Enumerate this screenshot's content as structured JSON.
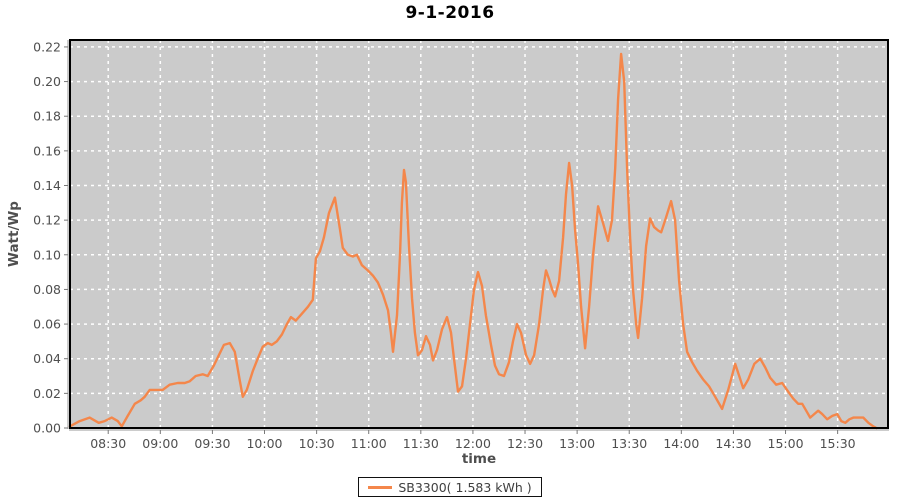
{
  "title": "9-1-2016",
  "colors": {
    "series": "#F4874B",
    "plot_background": "#CBCBCB",
    "grid": "#FFFFFF",
    "plot_border": "#000000",
    "tick_text": "#4F4F4F",
    "tick_mark": "#777777",
    "axis_line": "#999999",
    "title_text": "#000000"
  },
  "legend": {
    "label": "SB3300( 1.583 kWh )"
  },
  "chart_data": {
    "type": "line",
    "title": "9-1-2016",
    "xlabel": "time",
    "ylabel": "Watt/Wp",
    "grid": true,
    "legend_position": "bottom-center",
    "x_unit": "minutes-since-midnight",
    "x_range_minutes": [
      488,
      959
    ],
    "ylim": [
      0,
      0.224
    ],
    "y_ticks": [
      0,
      0.02,
      0.04,
      0.06,
      0.08,
      0.1,
      0.12,
      0.14,
      0.16,
      0.18,
      0.2,
      0.22
    ],
    "x_ticks": [
      {
        "t": 510,
        "label": "08:30"
      },
      {
        "t": 540,
        "label": "09:00"
      },
      {
        "t": 570,
        "label": "09:30"
      },
      {
        "t": 600,
        "label": "10:00"
      },
      {
        "t": 630,
        "label": "10:30"
      },
      {
        "t": 660,
        "label": "11:00"
      },
      {
        "t": 690,
        "label": "11:30"
      },
      {
        "t": 720,
        "label": "12:00"
      },
      {
        "t": 750,
        "label": "12:30"
      },
      {
        "t": 780,
        "label": "13:00"
      },
      {
        "t": 810,
        "label": "13:30"
      },
      {
        "t": 840,
        "label": "14:00"
      },
      {
        "t": 870,
        "label": "14:30"
      },
      {
        "t": 900,
        "label": "15:00"
      },
      {
        "t": 930,
        "label": "15:30"
      }
    ],
    "series": [
      {
        "name": "SB3300( 1.583 kWh )",
        "color": "#F4874B",
        "points": [
          [
            488,
            0.001
          ],
          [
            493.6,
            0.004
          ],
          [
            499.3,
            0.006
          ],
          [
            504.5,
            0.003
          ],
          [
            508,
            0.004
          ],
          [
            512,
            0.006
          ],
          [
            515.5,
            0.004
          ],
          [
            517.8,
            0.001
          ],
          [
            521.2,
            0.007
          ],
          [
            525.3,
            0.014
          ],
          [
            528.7,
            0.016
          ],
          [
            531,
            0.018
          ],
          [
            533.9,
            0.022
          ],
          [
            537.9,
            0.022
          ],
          [
            541.4,
            0.022
          ],
          [
            545.4,
            0.025
          ],
          [
            550,
            0.026
          ],
          [
            554.1,
            0.026
          ],
          [
            557,
            0.027
          ],
          [
            560.4,
            0.03
          ],
          [
            564.4,
            0.031
          ],
          [
            567.3,
            0.03
          ],
          [
            570.8,
            0.036
          ],
          [
            573.7,
            0.042
          ],
          [
            576.6,
            0.048
          ],
          [
            580,
            0.049
          ],
          [
            582.9,
            0.044
          ],
          [
            585.8,
            0.027
          ],
          [
            587.5,
            0.018
          ],
          [
            589.8,
            0.022
          ],
          [
            593.3,
            0.033
          ],
          [
            596.1,
            0.04
          ],
          [
            599,
            0.047
          ],
          [
            601.9,
            0.049
          ],
          [
            604.2,
            0.048
          ],
          [
            607.1,
            0.05
          ],
          [
            610,
            0.054
          ],
          [
            612.9,
            0.06
          ],
          [
            615.2,
            0.064
          ],
          [
            618,
            0.062
          ],
          [
            621.5,
            0.066
          ],
          [
            625,
            0.07
          ],
          [
            627.8,
            0.074
          ],
          [
            629.6,
            0.098
          ],
          [
            631.9,
            0.102
          ],
          [
            634.2,
            0.11
          ],
          [
            637.1,
            0.124
          ],
          [
            640.5,
            0.133
          ],
          [
            643.4,
            0.115
          ],
          [
            645.1,
            0.104
          ],
          [
            648,
            0.1
          ],
          [
            650.9,
            0.099
          ],
          [
            653.2,
            0.1
          ],
          [
            656.1,
            0.094
          ],
          [
            659.5,
            0.091
          ],
          [
            662.4,
            0.088
          ],
          [
            665.3,
            0.084
          ],
          [
            668.2,
            0.077
          ],
          [
            671.1,
            0.068
          ],
          [
            672.8,
            0.055
          ],
          [
            674,
            0.044
          ],
          [
            676.3,
            0.065
          ],
          [
            678,
            0.1
          ],
          [
            679.1,
            0.13
          ],
          [
            680.3,
            0.149
          ],
          [
            681.4,
            0.142
          ],
          [
            683.2,
            0.105
          ],
          [
            684.9,
            0.075
          ],
          [
            686.6,
            0.055
          ],
          [
            688.4,
            0.042
          ],
          [
            690.7,
            0.045
          ],
          [
            693,
            0.053
          ],
          [
            695.3,
            0.048
          ],
          [
            697,
            0.039
          ],
          [
            699.3,
            0.045
          ],
          [
            702.2,
            0.057
          ],
          [
            705.1,
            0.064
          ],
          [
            707.4,
            0.055
          ],
          [
            709.1,
            0.04
          ],
          [
            711.4,
            0.021
          ],
          [
            713.7,
            0.024
          ],
          [
            716,
            0.04
          ],
          [
            718.3,
            0.06
          ],
          [
            720.6,
            0.08
          ],
          [
            722.9,
            0.09
          ],
          [
            725.2,
            0.082
          ],
          [
            727.5,
            0.065
          ],
          [
            730.4,
            0.048
          ],
          [
            732.7,
            0.036
          ],
          [
            735,
            0.031
          ],
          [
            737.9,
            0.03
          ],
          [
            740.8,
            0.038
          ],
          [
            743.1,
            0.05
          ],
          [
            745.4,
            0.06
          ],
          [
            747.7,
            0.055
          ],
          [
            750.6,
            0.042
          ],
          [
            752.9,
            0.037
          ],
          [
            755.2,
            0.042
          ],
          [
            758.1,
            0.06
          ],
          [
            760.4,
            0.08
          ],
          [
            762.1,
            0.091
          ],
          [
            763.8,
            0.086
          ],
          [
            765.6,
            0.08
          ],
          [
            767.3,
            0.076
          ],
          [
            769.6,
            0.085
          ],
          [
            771.9,
            0.11
          ],
          [
            773.6,
            0.135
          ],
          [
            775.4,
            0.153
          ],
          [
            777.1,
            0.14
          ],
          [
            778.8,
            0.115
          ],
          [
            780.5,
            0.095
          ],
          [
            782.3,
            0.07
          ],
          [
            784.6,
            0.046
          ],
          [
            786.9,
            0.07
          ],
          [
            789.2,
            0.1
          ],
          [
            792.1,
            0.128
          ],
          [
            795,
            0.118
          ],
          [
            797.8,
            0.108
          ],
          [
            800.1,
            0.12
          ],
          [
            801.9,
            0.15
          ],
          [
            803.6,
            0.19
          ],
          [
            805.3,
            0.216
          ],
          [
            807.1,
            0.2
          ],
          [
            808.8,
            0.15
          ],
          [
            810.5,
            0.11
          ],
          [
            812.2,
            0.08
          ],
          [
            814,
            0.06
          ],
          [
            815.1,
            0.052
          ],
          [
            817.4,
            0.075
          ],
          [
            819.7,
            0.105
          ],
          [
            822,
            0.121
          ],
          [
            824.3,
            0.116
          ],
          [
            826.6,
            0.114
          ],
          [
            828.4,
            0.113
          ],
          [
            830.7,
            0.12
          ],
          [
            834.1,
            0.131
          ],
          [
            836.4,
            0.12
          ],
          [
            838.7,
            0.085
          ],
          [
            841,
            0.06
          ],
          [
            843.3,
            0.044
          ],
          [
            846.2,
            0.038
          ],
          [
            849.1,
            0.033
          ],
          [
            852.6,
            0.028
          ],
          [
            856,
            0.024
          ],
          [
            859.5,
            0.018
          ],
          [
            863.5,
            0.011
          ],
          [
            867,
            0.022
          ],
          [
            871,
            0.037
          ],
          [
            873.3,
            0.03
          ],
          [
            875.6,
            0.023
          ],
          [
            878.5,
            0.028
          ],
          [
            882,
            0.037
          ],
          [
            885.4,
            0.04
          ],
          [
            888.3,
            0.035
          ],
          [
            891.2,
            0.029
          ],
          [
            894.6,
            0.025
          ],
          [
            898.1,
            0.026
          ],
          [
            901.5,
            0.021
          ],
          [
            904.4,
            0.017
          ],
          [
            907.3,
            0.014
          ],
          [
            909.6,
            0.014
          ],
          [
            911.9,
            0.01
          ],
          [
            914.2,
            0.006
          ],
          [
            916.5,
            0.008
          ],
          [
            918.8,
            0.01
          ],
          [
            921.1,
            0.008
          ],
          [
            924,
            0.005
          ],
          [
            926.9,
            0.007
          ],
          [
            929.8,
            0.008
          ],
          [
            932.1,
            0.004
          ],
          [
            934.4,
            0.003
          ],
          [
            936.7,
            0.005
          ],
          [
            939,
            0.006
          ],
          [
            941.9,
            0.006
          ],
          [
            944.8,
            0.006
          ],
          [
            947.7,
            0.003
          ],
          [
            950.5,
            0.001
          ],
          [
            952.3,
            0
          ]
        ]
      }
    ]
  }
}
